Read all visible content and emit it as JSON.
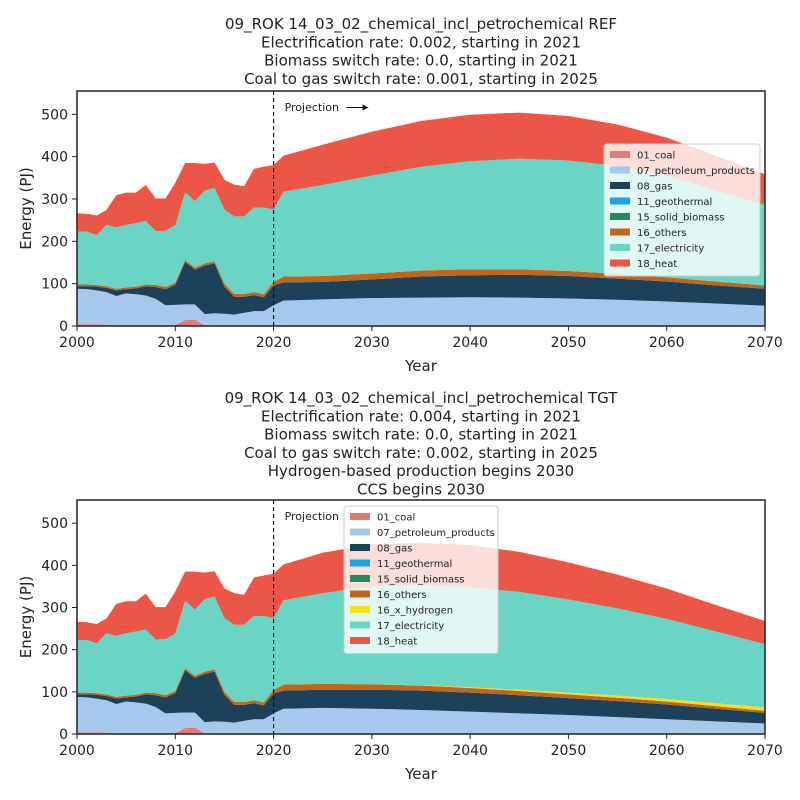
{
  "chart_data": [
    {
      "type": "area",
      "stacked": true,
      "title_lines": [
        "09_ROK 14_03_02_chemical_incl_petrochemical REF",
        "Electrification rate: 0.002, starting in 2021",
        "Biomass switch rate: 0.0, starting in 2021",
        "Coal to gas switch rate: 0.001, starting in 2025"
      ],
      "xlabel": "Year",
      "ylabel": "Energy (PJ)",
      "xlim": [
        2000,
        2070
      ],
      "ylim": [
        0,
        555
      ],
      "xticks": [
        2000,
        2010,
        2020,
        2030,
        2040,
        2050,
        2060,
        2070
      ],
      "yticks": [
        0,
        100,
        200,
        300,
        400,
        500
      ],
      "annotation": {
        "text": "Projection",
        "x": 2020
      },
      "legend_position": "center-right",
      "x": [
        2000,
        2001,
        2002,
        2003,
        2004,
        2005,
        2006,
        2007,
        2008,
        2009,
        2010,
        2011,
        2012,
        2013,
        2014,
        2015,
        2016,
        2017,
        2018,
        2019,
        2020,
        2021,
        2025,
        2030,
        2035,
        2040,
        2045,
        2050,
        2055,
        2060,
        2065,
        2070
      ],
      "series": [
        {
          "name": "01_coal",
          "color": "#e07b7b",
          "values": [
            4,
            4,
            4,
            3,
            1,
            1,
            1,
            1,
            1,
            1,
            2,
            14,
            15,
            2,
            1,
            1,
            0,
            0,
            0,
            0,
            0,
            0,
            0,
            0,
            0,
            0,
            0,
            0,
            0,
            0,
            0,
            0
          ]
        },
        {
          "name": "07_petroleum_products",
          "color": "#a6c8ec",
          "values": [
            84,
            83,
            80,
            77,
            70,
            76,
            74,
            71,
            63,
            48,
            48,
            37,
            36,
            26,
            29,
            28,
            27,
            31,
            35,
            35,
            49,
            60,
            63,
            66,
            67,
            68,
            67,
            65,
            62,
            58,
            53,
            48
          ]
        },
        {
          "name": "08_gas",
          "color": "#1d4159",
          "values": [
            6,
            7,
            9,
            10,
            13,
            10,
            14,
            22,
            28,
            38,
            47,
            100,
            82,
            115,
            118,
            64,
            42,
            38,
            38,
            33,
            47,
            43,
            41,
            44,
            50,
            52,
            54,
            53,
            50,
            47,
            43,
            40
          ]
        },
        {
          "name": "11_geothermal",
          "color": "#1aa3e6",
          "values": [
            0,
            0,
            0,
            0,
            0,
            0,
            0,
            0,
            0,
            0,
            0,
            0,
            0,
            0,
            0,
            0,
            0,
            0,
            0,
            0,
            0,
            0,
            0,
            0,
            0,
            0,
            0,
            0,
            0,
            0,
            0,
            0
          ]
        },
        {
          "name": "15_solid_biomass",
          "color": "#268a5c",
          "values": [
            0,
            0,
            0,
            0,
            0,
            0,
            0,
            0,
            0,
            0,
            0,
            0,
            0,
            0,
            0,
            0,
            0,
            0,
            0,
            0,
            0,
            0,
            0,
            0,
            0,
            0,
            0,
            0,
            0,
            0,
            0,
            0
          ]
        },
        {
          "name": "16_others",
          "color": "#c0651c",
          "values": [
            4,
            4,
            4,
            4,
            4,
            4,
            4,
            4,
            5,
            5,
            5,
            5,
            5,
            5,
            5,
            7,
            7,
            7,
            7,
            7,
            8,
            14,
            14,
            14,
            14,
            14,
            13,
            12,
            11,
            10,
            9,
            8
          ]
        },
        {
          "name": "17_electricity",
          "color": "#6ad5c5",
          "values": [
            125,
            125,
            118,
            145,
            145,
            148,
            150,
            150,
            127,
            133,
            136,
            160,
            157,
            172,
            173,
            175,
            183,
            183,
            200,
            205,
            171,
            200,
            215,
            231,
            245,
            255,
            261,
            261,
            255,
            240,
            215,
            190
          ]
        },
        {
          "name": "18_heat",
          "color": "#ec5646",
          "values": [
            43,
            42,
            46,
            35,
            76,
            76,
            72,
            85,
            77,
            76,
            100,
            69,
            90,
            63,
            60,
            70,
            75,
            71,
            91,
            96,
            105,
            85,
            95,
            104,
            108,
            110,
            109,
            105,
            98,
            90,
            82,
            72
          ]
        }
      ]
    },
    {
      "type": "area",
      "stacked": true,
      "title_lines": [
        "09_ROK 14_03_02_chemical_incl_petrochemical TGT",
        "Electrification rate: 0.004, starting in 2021",
        "Biomass switch rate: 0.0, starting in 2021",
        "Coal to gas switch rate: 0.002, starting in 2025",
        "Hydrogen-based production begins 2030",
        "CCS begins 2030"
      ],
      "xlabel": "Year",
      "ylabel": "Energy (PJ)",
      "xlim": [
        2000,
        2070
      ],
      "ylim": [
        0,
        555
      ],
      "xticks": [
        2000,
        2010,
        2020,
        2030,
        2040,
        2050,
        2060,
        2070
      ],
      "yticks": [
        0,
        100,
        200,
        300,
        400,
        500
      ],
      "annotation": {
        "text": "Projection",
        "x": 2020
      },
      "legend_position": "upper-center",
      "x": [
        2000,
        2001,
        2002,
        2003,
        2004,
        2005,
        2006,
        2007,
        2008,
        2009,
        2010,
        2011,
        2012,
        2013,
        2014,
        2015,
        2016,
        2017,
        2018,
        2019,
        2020,
        2021,
        2025,
        2030,
        2035,
        2040,
        2045,
        2050,
        2055,
        2060,
        2065,
        2070
      ],
      "series": [
        {
          "name": "01_coal",
          "color": "#e07b7b",
          "values": [
            4,
            4,
            4,
            3,
            1,
            1,
            1,
            1,
            1,
            1,
            2,
            14,
            15,
            2,
            1,
            1,
            0,
            0,
            0,
            0,
            0,
            0,
            0,
            0,
            0,
            0,
            0,
            0,
            0,
            0,
            0,
            0
          ]
        },
        {
          "name": "07_petroleum_products",
          "color": "#a6c8ec",
          "values": [
            84,
            83,
            80,
            77,
            70,
            76,
            74,
            71,
            63,
            48,
            48,
            37,
            36,
            26,
            29,
            28,
            27,
            31,
            35,
            35,
            49,
            60,
            62,
            60,
            57,
            53,
            49,
            45,
            40,
            35,
            30,
            25
          ]
        },
        {
          "name": "08_gas",
          "color": "#1d4159",
          "values": [
            6,
            7,
            9,
            10,
            13,
            10,
            14,
            22,
            28,
            38,
            47,
            100,
            82,
            115,
            118,
            64,
            42,
            38,
            38,
            33,
            47,
            43,
            43,
            45,
            46,
            45,
            43,
            40,
            38,
            35,
            30,
            25
          ]
        },
        {
          "name": "11_geothermal",
          "color": "#1aa3e6",
          "values": [
            0,
            0,
            0,
            0,
            0,
            0,
            0,
            0,
            0,
            0,
            0,
            0,
            0,
            0,
            0,
            0,
            0,
            0,
            0,
            0,
            0,
            0,
            0,
            0,
            0,
            0,
            0,
            0,
            0,
            0,
            0,
            0
          ]
        },
        {
          "name": "15_solid_biomass",
          "color": "#268a5c",
          "values": [
            0,
            0,
            0,
            0,
            0,
            0,
            0,
            0,
            0,
            0,
            0,
            0,
            0,
            0,
            0,
            0,
            0,
            0,
            0,
            0,
            0,
            0,
            0,
            0,
            0,
            0,
            0,
            0,
            0,
            0,
            0,
            0
          ]
        },
        {
          "name": "16_others",
          "color": "#c0651c",
          "values": [
            4,
            4,
            4,
            4,
            4,
            4,
            4,
            4,
            5,
            5,
            5,
            5,
            5,
            5,
            5,
            7,
            7,
            7,
            7,
            7,
            8,
            14,
            14,
            13,
            12,
            11,
            10,
            9,
            8,
            7,
            6,
            5
          ]
        },
        {
          "name": "16_x_hydrogen",
          "color": "#f7e017",
          "values": [
            0,
            0,
            0,
            0,
            0,
            0,
            0,
            0,
            0,
            0,
            0,
            0,
            0,
            0,
            0,
            0,
            0,
            0,
            0,
            0,
            0,
            0,
            0,
            0,
            1,
            2,
            3,
            4,
            5,
            6,
            7,
            8
          ]
        },
        {
          "name": "17_electricity",
          "color": "#6ad5c5",
          "values": [
            125,
            125,
            118,
            145,
            145,
            148,
            150,
            150,
            127,
            133,
            136,
            160,
            157,
            172,
            173,
            175,
            183,
            183,
            200,
            205,
            171,
            200,
            215,
            232,
            237,
            237,
            232,
            221,
            207,
            190,
            170,
            150
          ]
        },
        {
          "name": "18_heat",
          "color": "#ec5646",
          "values": [
            43,
            42,
            46,
            35,
            76,
            76,
            72,
            85,
            77,
            76,
            100,
            69,
            90,
            63,
            60,
            70,
            75,
            71,
            91,
            96,
            105,
            85,
            96,
            100,
            101,
            100,
            95,
            88,
            80,
            72,
            63,
            55
          ]
        }
      ]
    }
  ]
}
